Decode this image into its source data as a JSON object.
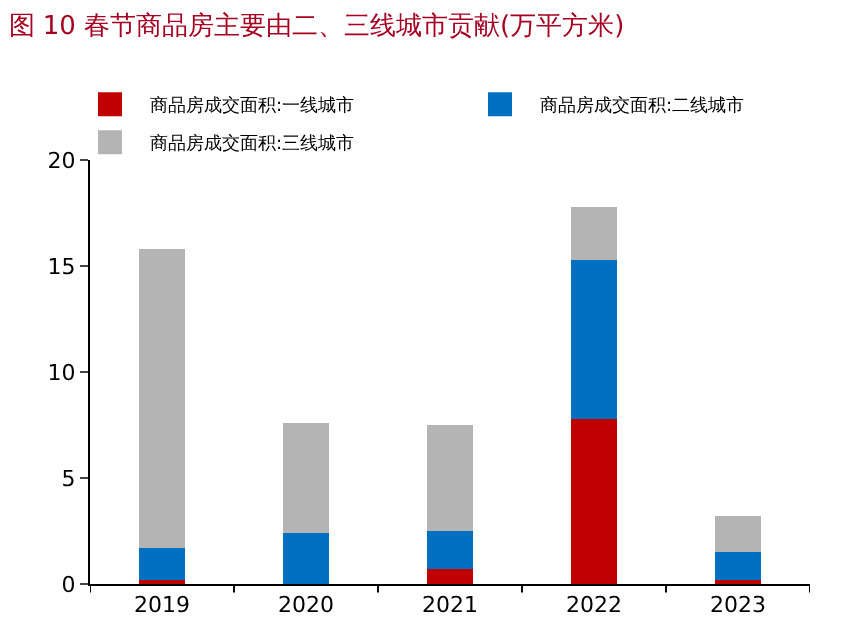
{
  "chart_data": {
    "type": "bar",
    "title": "图 10 春节商品房主要由二、三线城市贡献(万平方米)",
    "categories": [
      "2019",
      "2020",
      "2021",
      "2022",
      "2023"
    ],
    "stacked": true,
    "series": [
      {
        "name": "商品房成交面积:一线城市",
        "color": "#c00000",
        "values": [
          0.2,
          0,
          0.7,
          7.8,
          0.2
        ]
      },
      {
        "name": "商品房成交面积:二线城市",
        "color": "#0070c0",
        "values": [
          1.5,
          2.4,
          1.8,
          7.5,
          1.3
        ]
      },
      {
        "name": "商品房成交面积:三线城市",
        "color": "#b4b4b4",
        "values": [
          14.1,
          5.2,
          5.0,
          2.5,
          1.7
        ]
      }
    ],
    "ylim": [
      0,
      20
    ],
    "yticks": [
      0,
      5,
      10,
      15,
      20
    ],
    "legend": "top left"
  }
}
